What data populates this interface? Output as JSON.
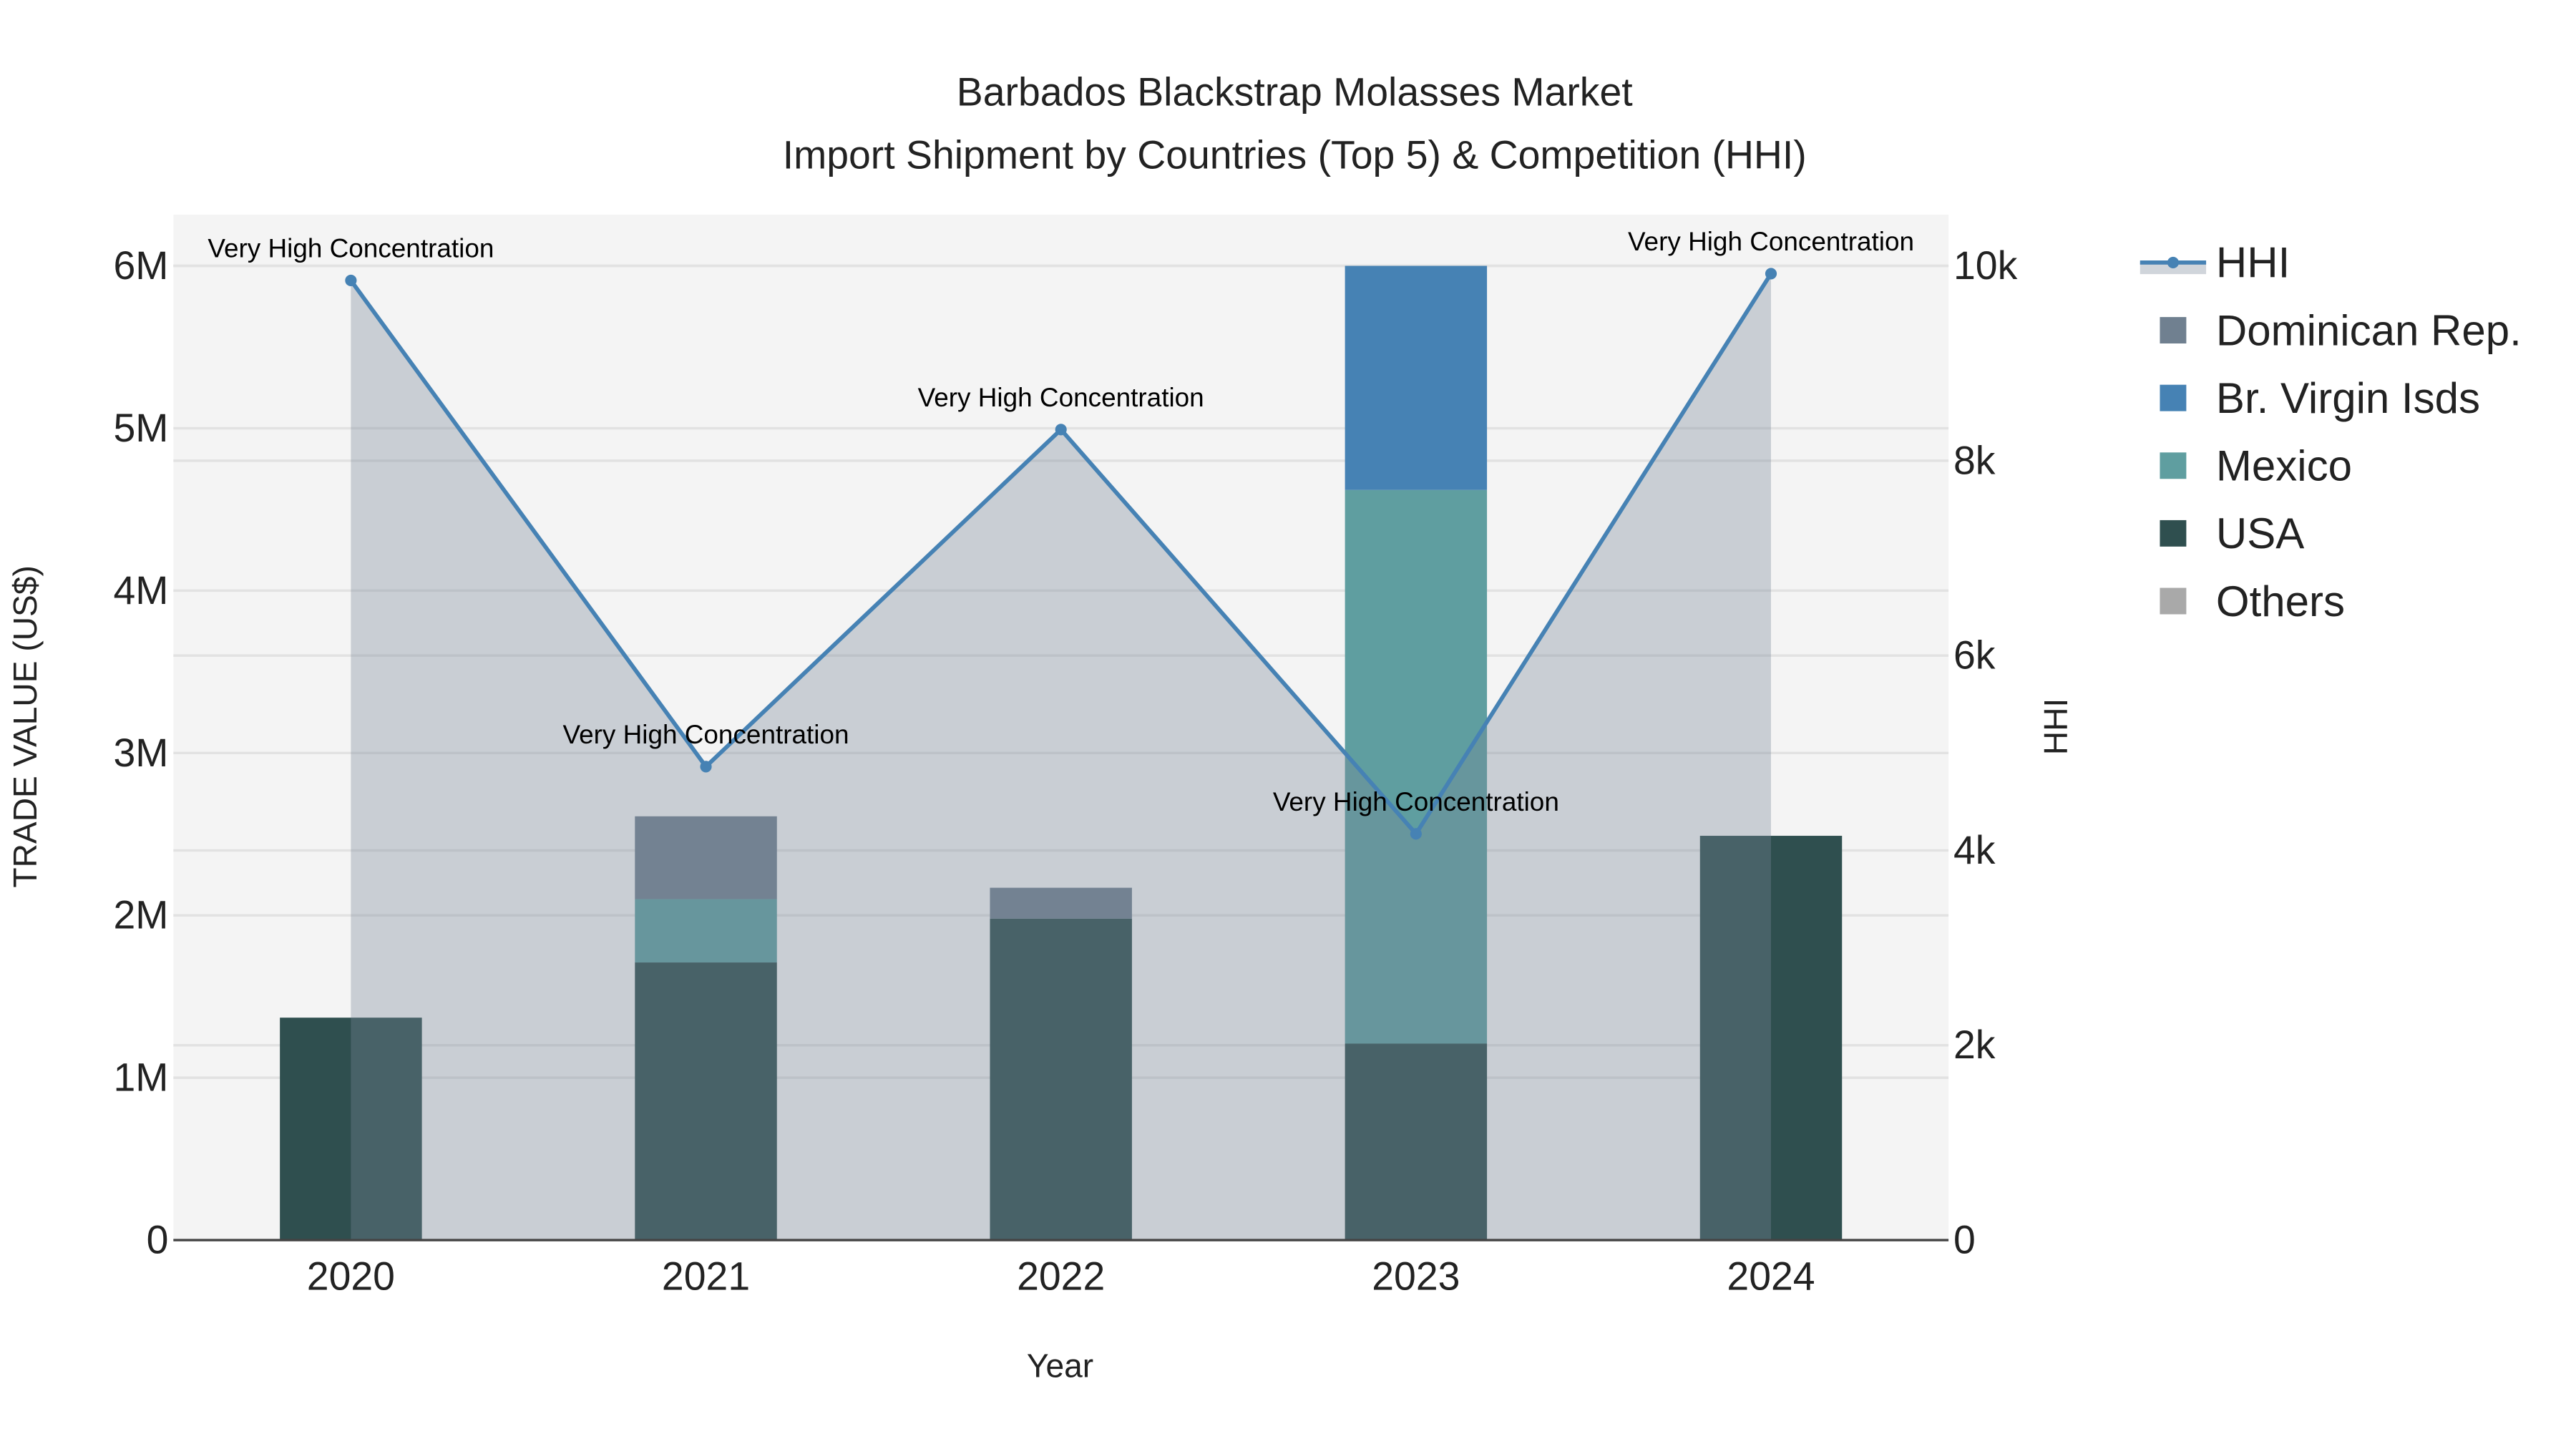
{
  "chart_data": {
    "type": "bar",
    "title": "Barbados Blackstrap Molasses Market",
    "subtitle": "Import Shipment by Countries (Top 5) & Competition (HHI)",
    "xlabel": "Year",
    "ylabel": "TRADE VALUE (US$)",
    "y2label": "HHI",
    "categories": [
      "2020",
      "2021",
      "2022",
      "2023",
      "2024"
    ],
    "ylim": [
      0,
      6300000
    ],
    "y2lim": [
      0,
      10500
    ],
    "yticks": [
      0,
      1000000,
      2000000,
      3000000,
      4000000,
      5000000,
      6000000
    ],
    "ytick_labels": [
      "0",
      "1M",
      "2M",
      "3M",
      "4M",
      "5M",
      "6M"
    ],
    "y2ticks": [
      0,
      2000,
      4000,
      6000,
      8000,
      10000
    ],
    "y2tick_labels": [
      "0",
      "2k",
      "4k",
      "6k",
      "8k",
      "10k"
    ],
    "barmode": "stack",
    "series": [
      {
        "name": "USA",
        "color": "#2f4f4f",
        "values": [
          1370000,
          1710000,
          1980000,
          1210000,
          2490000
        ]
      },
      {
        "name": "Mexico",
        "color": "#5f9ea0",
        "values": [
          0,
          390000,
          0,
          3410000,
          0
        ]
      },
      {
        "name": "Br. Virgin Isds",
        "color": "#4682b4",
        "values": [
          0,
          0,
          0,
          1380000,
          0
        ]
      },
      {
        "name": "Dominican Rep.",
        "color": "#708090",
        "values": [
          0,
          510000,
          190000,
          0,
          0
        ]
      },
      {
        "name": "Others",
        "color": "#a9a9a9",
        "values": [
          0,
          0,
          0,
          0,
          0
        ]
      }
    ],
    "hhi": {
      "name": "HHI",
      "type": "line+area",
      "axis": "right",
      "line_color": "#4682b4",
      "fill_color": "rgba(119,136,153,0.35)",
      "values": [
        9850,
        4860,
        8320,
        4170,
        9920
      ],
      "annotations": [
        "Very High Concentration",
        "Very High Concentration",
        "Very High Concentration",
        "Very High Concentration",
        "Very High Concentration"
      ]
    },
    "legend": {
      "placement": "right",
      "order": [
        "HHI",
        "Dominican Rep.",
        "Br. Virgin Isds",
        "Mexico",
        "USA",
        "Others"
      ]
    },
    "grid": true
  }
}
